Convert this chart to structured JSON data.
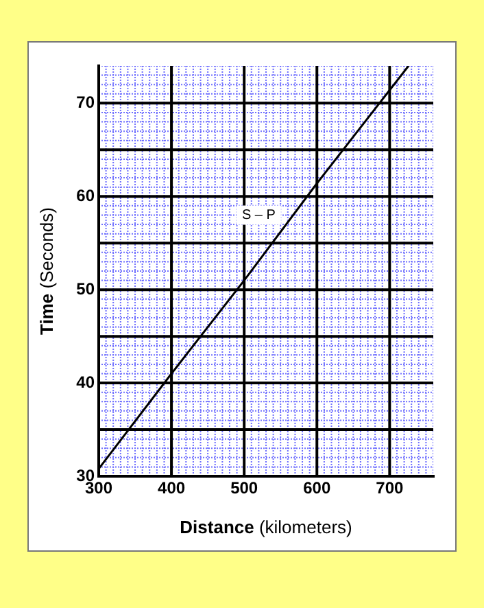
{
  "chart_data": {
    "type": "line",
    "xlabel": "Distance (kilometers)",
    "ylabel": "Time (Seconds)",
    "x": [
      300,
      400,
      500,
      600,
      726
    ],
    "series": [
      {
        "color": "#000000",
        "values": [
          30.8,
          41,
          51,
          61.4,
          74
        ]
      }
    ],
    "xlim": [
      300,
      760
    ],
    "xticks": [
      300,
      {
        "value": 310,
        "label": null
      },
      {
        "value": 320,
        "label": null
      },
      {
        "value": 330,
        "label": null
      },
      {
        "value": 340,
        "label": null
      },
      {
        "value": 350,
        "label": null
      },
      {
        "value": 360,
        "label": null
      },
      {
        "value": 370,
        "label": null
      },
      {
        "value": 380,
        "label": null
      },
      {
        "value": 390,
        "label": null
      },
      400,
      {
        "value": 410,
        "label": null
      },
      {
        "value": 420,
        "label": null
      },
      {
        "value": 430,
        "label": null
      },
      {
        "value": 440,
        "label": null
      },
      {
        "value": 450,
        "label": null
      },
      {
        "value": 460,
        "label": null
      },
      {
        "value": 470,
        "label": null
      },
      {
        "value": 480,
        "label": null
      },
      {
        "value": 490,
        "label": null
      },
      500,
      {
        "value": 510,
        "label": null
      },
      {
        "value": 520,
        "label": null
      },
      {
        "value": 530,
        "label": null
      },
      {
        "value": 540,
        "label": null
      },
      {
        "value": 550,
        "label": null
      },
      {
        "value": 560,
        "label": null
      },
      {
        "value": 570,
        "label": null
      },
      {
        "value": 580,
        "label": null
      },
      {
        "value": 590,
        "label": null
      },
      600,
      {
        "value": 610,
        "label": null
      },
      {
        "value": 620,
        "label": null
      },
      {
        "value": 630,
        "label": null
      },
      {
        "value": 640,
        "label": null
      },
      {
        "value": 650,
        "label": null
      },
      {
        "value": 660,
        "label": null
      },
      {
        "value": 670,
        "label": null
      },
      {
        "value": 680,
        "label": null
      },
      {
        "value": 690,
        "label": null
      },
      700,
      {
        "value": 710,
        "label": null
      },
      {
        "value": 720,
        "label": null
      },
      {
        "value": 730,
        "label": null
      },
      {
        "value": 740,
        "label": null
      },
      {
        "value": 750,
        "label": null
      },
      {
        "value": 760,
        "label": null
      }
    ],
    "ylim": [
      30,
      74
    ],
    "yticks": [
      30,
      {
        "value": 31,
        "label": null
      },
      {
        "value": 32,
        "label": null
      },
      {
        "value": 33,
        "label": null
      },
      {
        "value": 34,
        "label": null
      },
      {
        "value": 36,
        "label": null
      },
      {
        "value": 37,
        "label": null
      },
      {
        "value": 38,
        "label": null
      },
      {
        "value": 39,
        "label": null
      },
      40,
      {
        "value": 41,
        "label": null
      },
      {
        "value": 42,
        "label": null
      },
      {
        "value": 43,
        "label": null
      },
      {
        "value": 44,
        "label": null
      },
      {
        "value": 46,
        "label": null
      },
      {
        "value": 47,
        "label": null
      },
      {
        "value": 48,
        "label": null
      },
      {
        "value": 49,
        "label": null
      },
      50,
      {
        "value": 51,
        "label": null
      },
      {
        "value": 52,
        "label": null
      },
      {
        "value": 53,
        "label": null
      },
      {
        "value": 54,
        "label": null
      },
      {
        "value": 56,
        "label": null
      },
      {
        "value": 57,
        "label": null
      },
      {
        "value": 58,
        "label": null
      },
      {
        "value": 59,
        "label": null
      },
      60,
      {
        "value": 61,
        "label": null
      },
      {
        "value": 62,
        "label": null
      },
      {
        "value": 63,
        "label": null
      },
      {
        "value": 64,
        "label": null
      },
      {
        "value": 66,
        "label": null
      },
      {
        "value": 67,
        "label": null
      },
      {
        "value": 68,
        "label": null
      },
      {
        "value": 69,
        "label": null
      },
      70,
      {
        "value": 71,
        "label": null
      },
      {
        "value": 72,
        "label": null
      },
      {
        "value": 73,
        "label": null
      },
      {
        "value": 74,
        "label": null
      }
    ],
    "ref_lines": [
      {
        "axis": "y",
        "value": 35,
        "color": "#000000"
      },
      {
        "axis": "y",
        "value": 45,
        "color": "#000000"
      },
      {
        "axis": "y",
        "value": 55,
        "color": "#000000"
      },
      {
        "axis": "y",
        "value": 65,
        "color": "#000000"
      }
    ],
    "grid": true,
    "legend": false,
    "marker": "none",
    "line_style": "solid",
    "annotations": [
      {
        "text": "S – P",
        "x": 520,
        "y": 58
      }
    ]
  }
}
